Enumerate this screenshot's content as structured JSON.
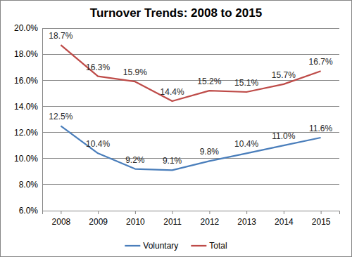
{
  "chart_data": {
    "type": "line",
    "title": "Turnover Trends: 2008 to 2015",
    "categories": [
      "2008",
      "2009",
      "2010",
      "2011",
      "2012",
      "2013",
      "2014",
      "2015"
    ],
    "series": [
      {
        "name": "Voluntary",
        "color": "#4a7ebb",
        "values": [
          12.5,
          10.4,
          9.2,
          9.1,
          9.8,
          10.4,
          11.0,
          11.6
        ],
        "value_labels": [
          "12.5%",
          "10.4%",
          "9.2%",
          "9.1%",
          "9.8%",
          "10.4%",
          "11.0%",
          "11.6%"
        ]
      },
      {
        "name": "Total",
        "color": "#be4b48",
        "values": [
          18.7,
          16.3,
          15.9,
          14.4,
          15.2,
          15.1,
          15.7,
          16.7
        ],
        "value_labels": [
          "18.7%",
          "16.3%",
          "15.9%",
          "14.4%",
          "15.2%",
          "15.1%",
          "15.7%",
          "16.7%"
        ]
      }
    ],
    "ylim": [
      6,
      20
    ],
    "yticks": [
      {
        "value": 6,
        "label": "6.0%"
      },
      {
        "value": 8,
        "label": "8.0%"
      },
      {
        "value": 10,
        "label": "10.0%"
      },
      {
        "value": 12,
        "label": "12.0%"
      },
      {
        "value": 14,
        "label": "14.0%"
      },
      {
        "value": 16,
        "label": "16.0%"
      },
      {
        "value": 18,
        "label": "18.0%"
      },
      {
        "value": 20,
        "label": "20.0%"
      }
    ],
    "grid": true,
    "legend": "bottom",
    "data_labels": true
  }
}
